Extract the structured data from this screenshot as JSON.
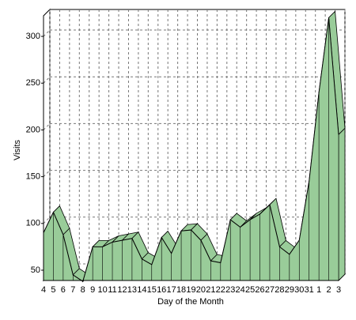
{
  "chart_data": {
    "type": "area3d",
    "y_label": "Visits",
    "x_label": "Day of the Month",
    "categories": [
      "4",
      "5",
      "6",
      "7",
      "8",
      "9",
      "10",
      "11",
      "12",
      "13",
      "14",
      "15",
      "16",
      "17",
      "18",
      "19",
      "20",
      "21",
      "22",
      "23",
      "24",
      "25",
      "26",
      "27",
      "28",
      "29",
      "30",
      "31",
      "1",
      "2",
      "3"
    ],
    "values": [
      90,
      112,
      88,
      45,
      38,
      75,
      75,
      80,
      82,
      84,
      62,
      56,
      85,
      68,
      92,
      93,
      82,
      60,
      58,
      104,
      96,
      104,
      110,
      120,
      75,
      67,
      82,
      145,
      240,
      320,
      195
    ],
    "color": "#99cc99",
    "ylim": [
      39,
      322
    ],
    "yticks": [
      50,
      100,
      150,
      200,
      250,
      300
    ],
    "grid": true
  }
}
